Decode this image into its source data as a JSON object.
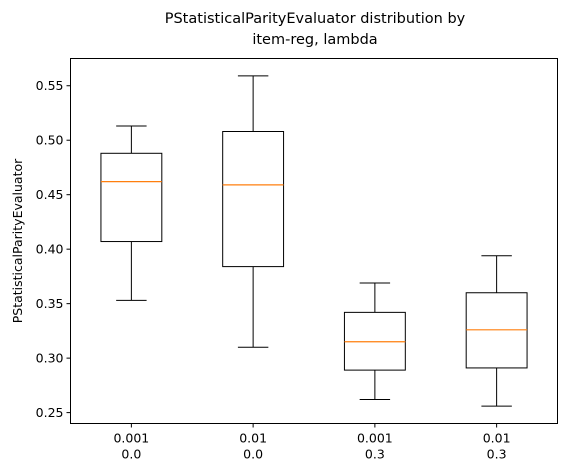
{
  "chart_data": {
    "type": "boxplot",
    "title": [
      "PStatisticalParityEvaluator distribution by",
      "item-reg, lambda"
    ],
    "ylabel": "PStatisticalParityEvaluator",
    "xlabel": "",
    "ylim": [
      0.24,
      0.575
    ],
    "yticks": [
      0.25,
      0.3,
      0.35,
      0.4,
      0.45,
      0.5,
      0.55
    ],
    "ytick_labels": [
      "0.25",
      "0.30",
      "0.35",
      "0.40",
      "0.45",
      "0.50",
      "0.55"
    ],
    "grid": false,
    "box_color": "#000000",
    "median_color": "#ff7f0e",
    "groups": [
      {
        "label": [
          "0.001",
          "0.0"
        ],
        "whisker_low": 0.353,
        "q1": 0.407,
        "median": 0.462,
        "q3": 0.488,
        "whisker_high": 0.513
      },
      {
        "label": [
          "0.01",
          "0.0"
        ],
        "whisker_low": 0.31,
        "q1": 0.384,
        "median": 0.459,
        "q3": 0.508,
        "whisker_high": 0.559
      },
      {
        "label": [
          "0.001",
          "0.3"
        ],
        "whisker_low": 0.262,
        "q1": 0.289,
        "median": 0.315,
        "q3": 0.342,
        "whisker_high": 0.369
      },
      {
        "label": [
          "0.01",
          "0.3"
        ],
        "whisker_low": 0.256,
        "q1": 0.291,
        "median": 0.326,
        "q3": 0.36,
        "whisker_high": 0.394
      }
    ]
  }
}
